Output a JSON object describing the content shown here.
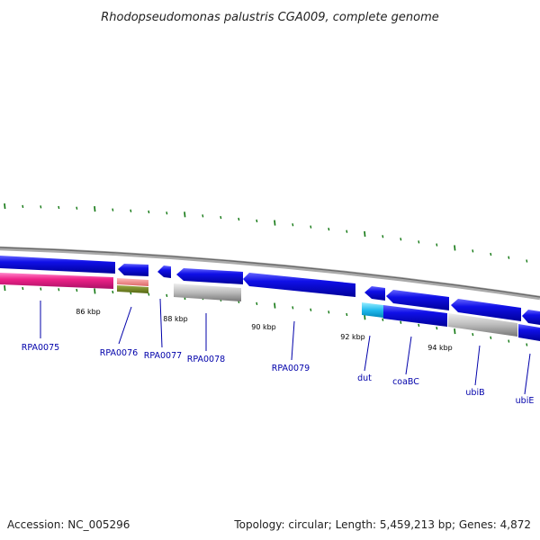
{
  "title": "Rhodopseudomonas palustris CGA009, complete genome",
  "footer": {
    "accession": "Accession: NC_005296",
    "summary": "Topology: circular; Length: 5,459,213 bp; Genes: 4,872"
  },
  "ticks": [
    {
      "label": "86 kbp"
    },
    {
      "label": "88 kbp"
    },
    {
      "label": "90 kbp"
    },
    {
      "label": "92 kbp"
    },
    {
      "label": "94 kbp"
    }
  ],
  "genes": [
    {
      "label": "RPA0075"
    },
    {
      "label": "RPA0076"
    },
    {
      "label": "RPA0077"
    },
    {
      "label": "RPA0078"
    },
    {
      "label": "RPA0079"
    },
    {
      "label": "dut"
    },
    {
      "label": "coaBC"
    },
    {
      "label": "ubiB"
    },
    {
      "label": "ubiE"
    }
  ],
  "colors": {
    "cds": "#1010e8",
    "highlight_cds": "#22bbee",
    "rna_pink": "#ee2288",
    "rna_light": "#ee8888",
    "gene_gray": "#bbbbbb",
    "olive": "#667722",
    "backbone": "#888888",
    "tick_green": "#117711",
    "label_blue": "#0000aa"
  }
}
